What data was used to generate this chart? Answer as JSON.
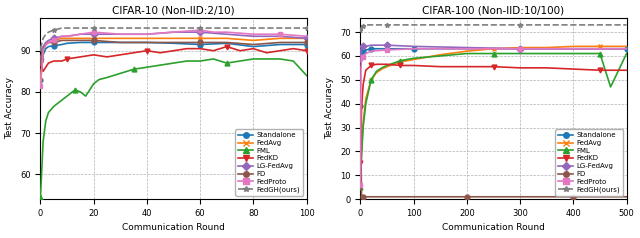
{
  "plot1": {
    "title": "CIFAR-10 (Non-IID:2/10)",
    "xlabel": "Communication Round",
    "ylabel": "Test Accuracy",
    "xlim": [
      0,
      100
    ],
    "ylim": [
      54,
      98
    ],
    "yticks": [
      60,
      70,
      80,
      90
    ],
    "xticks": [
      0,
      20,
      40,
      60,
      80,
      100
    ],
    "series": {
      "Standalone": {
        "color": "#1f77b4",
        "marker": "o",
        "linestyle": "-",
        "x": [
          0,
          1,
          2,
          3,
          5,
          8,
          10,
          15,
          20,
          30,
          40,
          50,
          60,
          70,
          80,
          90,
          100
        ],
        "y": [
          83.0,
          89.0,
          90.5,
          91.0,
          91.2,
          91.5,
          91.8,
          92.0,
          92.0,
          92.0,
          92.0,
          91.8,
          91.5,
          91.8,
          91.0,
          91.5,
          91.5
        ]
      },
      "FedAvg": {
        "color": "#ff7f0e",
        "marker": "x",
        "linestyle": "-",
        "x": [
          0,
          1,
          2,
          3,
          5,
          8,
          10,
          15,
          20,
          30,
          40,
          50,
          60,
          70,
          80,
          90,
          100
        ],
        "y": [
          83.0,
          90.0,
          91.5,
          92.0,
          92.5,
          93.0,
          93.0,
          93.0,
          93.0,
          93.0,
          93.0,
          93.0,
          93.0,
          93.0,
          92.5,
          93.0,
          93.0
        ]
      },
      "FML": {
        "color": "#2ca02c",
        "marker": "^",
        "linestyle": "-",
        "x": [
          0,
          1,
          2,
          3,
          5,
          7,
          10,
          13,
          15,
          17,
          20,
          22,
          25,
          30,
          35,
          40,
          45,
          50,
          55,
          60,
          65,
          70,
          75,
          80,
          85,
          90,
          95,
          100
        ],
        "y": [
          54.5,
          68.0,
          73.0,
          75.0,
          76.5,
          77.5,
          79.0,
          80.5,
          80.0,
          79.0,
          82.0,
          83.0,
          83.5,
          84.5,
          85.5,
          86.0,
          86.5,
          87.0,
          87.5,
          87.5,
          88.0,
          87.0,
          87.5,
          88.0,
          88.0,
          88.0,
          87.5,
          84.0
        ]
      },
      "FedKD": {
        "color": "#d62728",
        "marker": "v",
        "linestyle": "-",
        "x": [
          0,
          1,
          2,
          3,
          5,
          8,
          10,
          15,
          20,
          25,
          30,
          35,
          40,
          45,
          50,
          55,
          60,
          65,
          70,
          75,
          80,
          85,
          90,
          95,
          100
        ],
        "y": [
          87.0,
          85.0,
          86.0,
          87.0,
          87.5,
          87.5,
          88.0,
          88.5,
          89.0,
          88.5,
          89.0,
          89.5,
          90.0,
          89.5,
          90.0,
          90.5,
          90.5,
          90.0,
          91.0,
          90.0,
          90.5,
          89.5,
          90.0,
          90.5,
          90.0
        ]
      },
      "LG-FedAvg": {
        "color": "#9467bd",
        "marker": "D",
        "linestyle": "-",
        "x": [
          0,
          1,
          2,
          3,
          5,
          8,
          10,
          15,
          20,
          30,
          40,
          50,
          60,
          70,
          80,
          90,
          100
        ],
        "y": [
          88.0,
          91.0,
          92.0,
          92.5,
          93.0,
          93.5,
          93.5,
          94.0,
          94.0,
          94.0,
          94.0,
          94.5,
          94.5,
          94.0,
          93.5,
          93.5,
          93.0
        ]
      },
      "FD": {
        "color": "#8c564b",
        "marker": "o",
        "linestyle": "-",
        "x": [
          0,
          1,
          2,
          3,
          5,
          8,
          10,
          15,
          20,
          30,
          40,
          50,
          60,
          70,
          80,
          90,
          100
        ],
        "y": [
          87.5,
          90.5,
          91.5,
          92.0,
          92.0,
          92.5,
          92.5,
          92.5,
          92.5,
          92.0,
          92.0,
          92.0,
          92.0,
          92.0,
          91.5,
          92.0,
          92.0
        ]
      },
      "FedProto": {
        "color": "#e377c2",
        "marker": "s",
        "linestyle": "-",
        "x": [
          0,
          1,
          2,
          3,
          5,
          8,
          10,
          15,
          20,
          30,
          40,
          50,
          60,
          65,
          70,
          80,
          90,
          100
        ],
        "y": [
          81.5,
          90.0,
          91.5,
          92.0,
          92.5,
          93.5,
          93.5,
          94.0,
          94.5,
          94.0,
          94.0,
          94.5,
          95.0,
          94.5,
          94.5,
          94.0,
          94.0,
          93.5
        ]
      },
      "FedGH(ours)": {
        "color": "#7f7f7f",
        "marker": "*",
        "linestyle": "--",
        "x": [
          0,
          1,
          2,
          3,
          5,
          8,
          10,
          15,
          20,
          30,
          40,
          50,
          60,
          70,
          80,
          90,
          100
        ],
        "y": [
          90.5,
          93.0,
          94.0,
          94.5,
          95.0,
          95.5,
          95.5,
          95.5,
          95.5,
          95.5,
          95.5,
          95.5,
          95.5,
          95.5,
          95.5,
          95.5,
          95.5
        ]
      }
    }
  },
  "plot2": {
    "title": "CIFAR-100 (Non-IID:10/100)",
    "xlabel": "Communication Round",
    "ylabel": "Test Accuracy",
    "xlim": [
      0,
      500
    ],
    "ylim": [
      0,
      76
    ],
    "yticks": [
      0,
      10,
      20,
      30,
      40,
      50,
      60,
      70
    ],
    "xticks": [
      0,
      100,
      200,
      300,
      400,
      500
    ],
    "series": {
      "Standalone": {
        "color": "#1f77b4",
        "marker": "o",
        "linestyle": "-",
        "x": [
          0,
          2,
          5,
          10,
          20,
          50,
          100,
          200,
          300,
          400,
          500
        ],
        "y": [
          60.0,
          61.5,
          62.0,
          62.5,
          63.0,
          63.0,
          63.0,
          63.0,
          63.0,
          63.0,
          63.0
        ]
      },
      "FedAvg": {
        "color": "#ff7f0e",
        "marker": "x",
        "linestyle": "-",
        "x": [
          0,
          2,
          5,
          10,
          20,
          30,
          40,
          50,
          75,
          100,
          150,
          200,
          250,
          300,
          350,
          400,
          450,
          500
        ],
        "y": [
          5.0,
          20.0,
          32.0,
          42.0,
          50.0,
          53.0,
          54.5,
          55.5,
          57.5,
          58.5,
          60.5,
          62.0,
          63.0,
          63.5,
          63.5,
          64.0,
          64.0,
          64.0
        ]
      },
      "FML": {
        "color": "#2ca02c",
        "marker": "^",
        "linestyle": "-",
        "x": [
          0,
          2,
          5,
          10,
          20,
          30,
          40,
          50,
          75,
          100,
          150,
          200,
          250,
          300,
          350,
          400,
          450,
          470,
          500
        ],
        "y": [
          5.0,
          18.0,
          30.0,
          40.0,
          50.0,
          53.5,
          55.0,
          56.0,
          58.0,
          59.0,
          60.0,
          61.0,
          61.0,
          61.0,
          61.0,
          61.0,
          61.0,
          47.0,
          61.0
        ]
      },
      "FedKD": {
        "color": "#d62728",
        "marker": "v",
        "linestyle": "-",
        "x": [
          0,
          2,
          5,
          10,
          20,
          30,
          40,
          50,
          75,
          100,
          150,
          200,
          250,
          300,
          350,
          400,
          450,
          500
        ],
        "y": [
          15.0,
          38.0,
          48.0,
          54.0,
          56.0,
          56.5,
          56.5,
          56.5,
          56.0,
          56.0,
          55.5,
          55.5,
          55.5,
          55.0,
          55.0,
          54.5,
          54.0,
          54.0
        ]
      },
      "LG-FedAvg": {
        "color": "#9467bd",
        "marker": "D",
        "linestyle": "-",
        "x": [
          0,
          1,
          2,
          5,
          10,
          20,
          50,
          100,
          200,
          300,
          400,
          500
        ],
        "y": [
          59.0,
          63.0,
          63.5,
          64.0,
          64.0,
          64.5,
          64.5,
          64.0,
          63.5,
          63.0,
          63.0,
          63.0
        ]
      },
      "FD": {
        "color": "#8c564b",
        "marker": "o",
        "linestyle": "-",
        "x": [
          0,
          2,
          5,
          100,
          200,
          300,
          400,
          500
        ],
        "y": [
          39.0,
          1.0,
          1.0,
          1.0,
          1.0,
          1.0,
          1.0,
          1.0
        ]
      },
      "FedProto": {
        "color": "#e377c2",
        "marker": "s",
        "linestyle": "-",
        "x": [
          0,
          1,
          2,
          5,
          10,
          20,
          50,
          100,
          200,
          300,
          400,
          500
        ],
        "y": [
          6.0,
          55.0,
          58.0,
          59.5,
          61.0,
          62.0,
          62.5,
          63.0,
          63.0,
          63.0,
          63.0,
          63.0
        ]
      },
      "FedGH(ours)": {
        "color": "#7f7f7f",
        "marker": "*",
        "linestyle": "--",
        "x": [
          0,
          1,
          2,
          5,
          10,
          20,
          50,
          100,
          200,
          300,
          400,
          500
        ],
        "y": [
          71.0,
          71.5,
          72.0,
          72.5,
          73.0,
          73.0,
          73.0,
          73.0,
          73.0,
          73.0,
          73.0,
          73.0
        ]
      }
    }
  },
  "legend_order": [
    "Standalone",
    "FedAvg",
    "FML",
    "FedKD",
    "LG-FedAvg",
    "FD",
    "FedProto",
    "FedGH(ours)"
  ]
}
